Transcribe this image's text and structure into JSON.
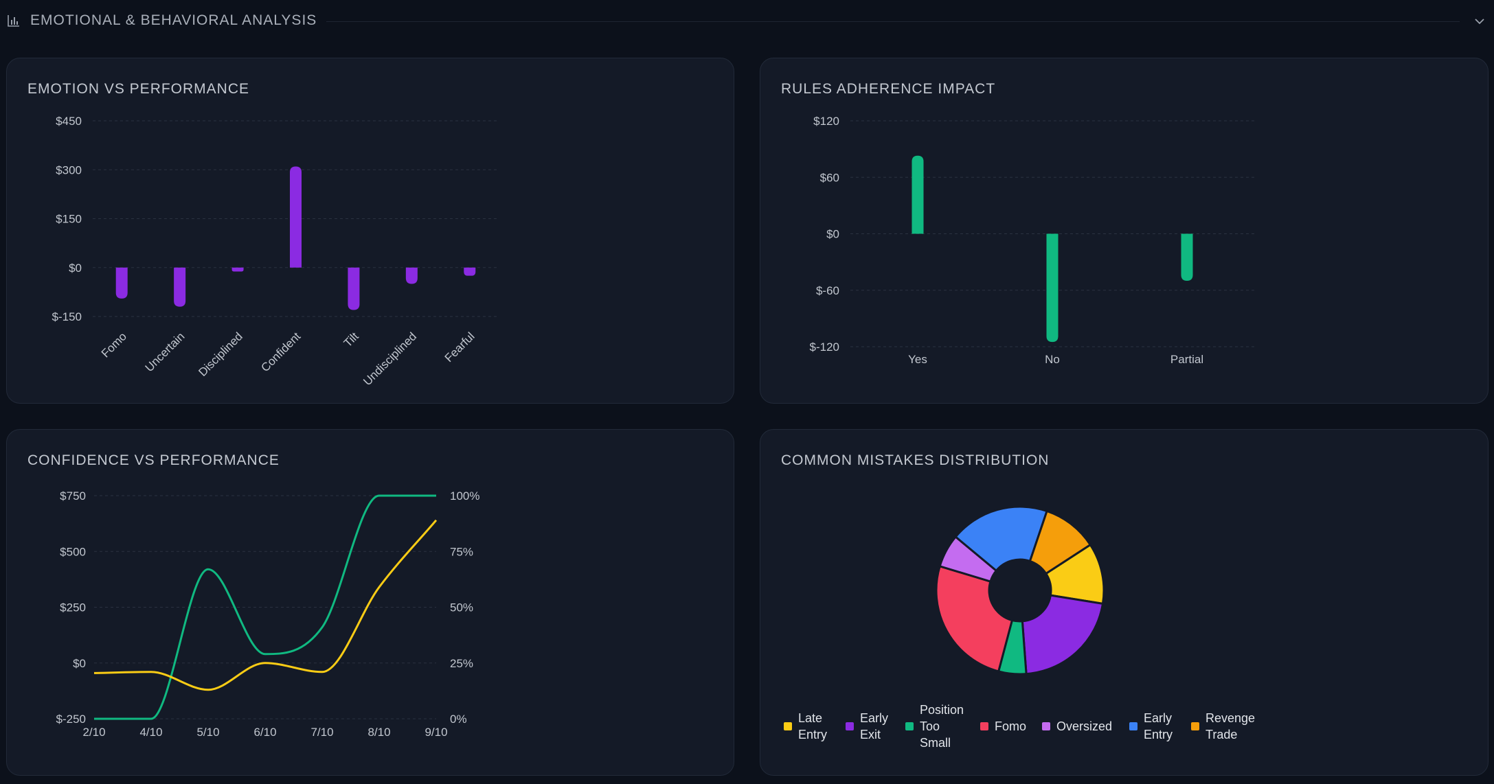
{
  "section": {
    "title": "EMOTIONAL & BEHAVIORAL ANALYSIS"
  },
  "cards": {
    "emotion": {
      "title": "EMOTION VS PERFORMANCE"
    },
    "rules": {
      "title": "RULES ADHERENCE IMPACT"
    },
    "confidence": {
      "title": "CONFIDENCE VS PERFORMANCE"
    },
    "mistakes": {
      "title": "COMMON MISTAKES DISTRIBUTION"
    }
  },
  "colors": {
    "purple": "#8b2be2",
    "green": "#10b981",
    "yellow": "#facc15",
    "grid": "#2a3140"
  },
  "chart_data": [
    {
      "id": "emotion",
      "type": "bar",
      "title": "EMOTION VS PERFORMANCE",
      "categories": [
        "Fomo",
        "Uncertain",
        "Disciplined",
        "Confident",
        "Tilt",
        "Undisciplined",
        "Fearful"
      ],
      "values": [
        -95,
        -120,
        -12,
        310,
        -130,
        -50,
        -25
      ],
      "ylim": [
        -150,
        450
      ],
      "yticks": [
        -150,
        0,
        150,
        300,
        450
      ],
      "ytick_labels": [
        "$-150",
        "$0",
        "$150",
        "$300",
        "$450"
      ],
      "color": "#8b2be2",
      "grid": true
    },
    {
      "id": "rules",
      "type": "bar",
      "title": "RULES ADHERENCE IMPACT",
      "categories": [
        "Yes",
        "No",
        "Partial"
      ],
      "values": [
        83,
        -115,
        -50
      ],
      "ylim": [
        -120,
        120
      ],
      "yticks": [
        -120,
        -60,
        0,
        60,
        120
      ],
      "ytick_labels": [
        "$-120",
        "$-60",
        "$0",
        "$60",
        "$120"
      ],
      "color": "#10b981",
      "grid": true
    },
    {
      "id": "confidence",
      "type": "line",
      "title": "CONFIDENCE VS PERFORMANCE",
      "x": [
        "2/10",
        "4/10",
        "5/10",
        "6/10",
        "7/10",
        "8/10",
        "9/10"
      ],
      "series": [
        {
          "axis": "right",
          "color": "#10b981",
          "values": [
            0,
            0,
            67,
            29,
            41,
            100,
            100
          ]
        },
        {
          "axis": "left",
          "color": "#facc15",
          "values": [
            -45,
            -40,
            -120,
            0,
            -40,
            340,
            640
          ]
        }
      ],
      "ylim_left": [
        -250,
        750
      ],
      "yticks_left": [
        -250,
        0,
        250,
        500,
        750
      ],
      "ytick_labels_left": [
        "$-250",
        "$0",
        "$250",
        "$500",
        "$750"
      ],
      "ylim_right": [
        0,
        100
      ],
      "yticks_right": [
        0,
        25,
        50,
        75,
        100
      ],
      "ytick_labels_right": [
        "0%",
        "25%",
        "50%",
        "75%",
        "100%"
      ],
      "grid": true
    },
    {
      "id": "mistakes",
      "type": "pie",
      "title": "COMMON MISTAKES DISTRIBUTION",
      "legend": "bottom",
      "slices": [
        {
          "label": "Late Entry",
          "value": 11,
          "color": "#facc15"
        },
        {
          "label": "Early Exit",
          "value": 20,
          "color": "#8b2be2"
        },
        {
          "label": "Position Too Small",
          "value": 5,
          "color": "#10b981"
        },
        {
          "label": "Fomo",
          "value": 24,
          "color": "#f43f5e"
        },
        {
          "label": "Oversized",
          "value": 6,
          "color": "#c46cf0"
        },
        {
          "label": "Early Entry",
          "value": 18,
          "color": "#3b82f6"
        },
        {
          "label": "Revenge Trade",
          "value": 10,
          "color": "#f59e0b"
        }
      ],
      "legend_lines": {
        "Late Entry": [
          "Late",
          "Entry"
        ],
        "Early Exit": [
          "Early",
          "Exit"
        ],
        "Position Too Small": [
          "Position",
          "Too",
          "Small"
        ],
        "Fomo": [
          "Fomo"
        ],
        "Oversized": [
          "Oversized"
        ],
        "Early Entry": [
          "Early",
          "Entry"
        ],
        "Revenge Trade": [
          "Revenge",
          "Trade"
        ]
      }
    }
  ]
}
